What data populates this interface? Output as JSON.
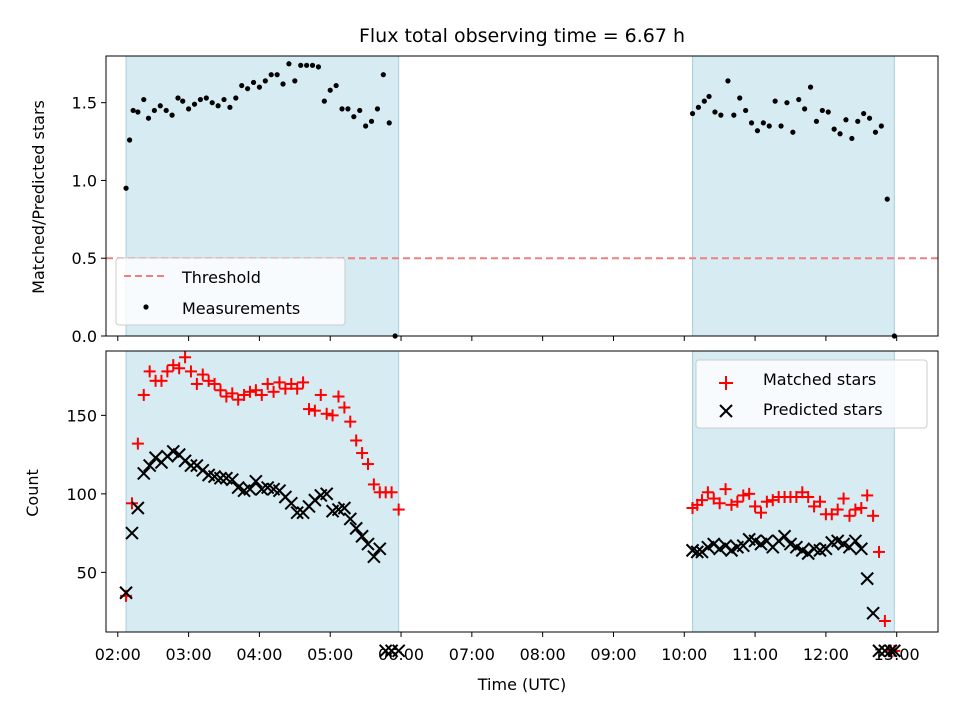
{
  "chart_data": [
    {
      "type": "scatter",
      "title": "Flux total observing time = 6.67 h",
      "xlabel": "",
      "ylabel": "Matched/Predicted stars",
      "xlim": [
        "01:50",
        "13:35"
      ],
      "ylim": [
        0.0,
        1.8
      ],
      "yticks": [
        "0.0",
        "0.5",
        "1.0",
        "1.5"
      ],
      "grid": false,
      "legend_position": "lower-left",
      "shaded_intervals": [
        [
          "02:07",
          "05:58"
        ],
        [
          "10:07",
          "12:58"
        ]
      ],
      "threshold": {
        "name": "Threshold",
        "value": 0.5,
        "color": "#f08080"
      },
      "series": [
        {
          "name": "Measurements",
          "color": "#000000",
          "x": [
            "02:07",
            "02:10",
            "02:13",
            "02:17",
            "02:22",
            "02:26",
            "02:31",
            "02:36",
            "02:41",
            "02:46",
            "02:51",
            "02:55",
            "03:00",
            "03:05",
            "03:10",
            "03:15",
            "03:20",
            "03:25",
            "03:30",
            "03:35",
            "03:40",
            "03:45",
            "03:50",
            "03:55",
            "04:00",
            "04:05",
            "04:10",
            "04:15",
            "04:20",
            "04:25",
            "04:30",
            "04:35",
            "04:40",
            "04:45",
            "04:50",
            "04:55",
            "05:00",
            "05:05",
            "05:10",
            "05:15",
            "05:20",
            "05:25",
            "05:30",
            "05:35",
            "05:40",
            "05:45",
            "05:50",
            "05:55",
            "10:07",
            "10:12",
            "10:17",
            "10:21",
            "10:26",
            "10:31",
            "10:37",
            "10:42",
            "10:47",
            "10:52",
            "10:57",
            "11:02",
            "11:07",
            "11:12",
            "11:17",
            "11:22",
            "11:27",
            "11:32",
            "11:37",
            "11:42",
            "11:47",
            "11:52",
            "11:57",
            "12:02",
            "12:07",
            "12:12",
            "12:17",
            "12:22",
            "12:27",
            "12:32",
            "12:37",
            "12:42",
            "12:47",
            "12:52",
            "12:58"
          ],
          "y": [
            0.95,
            1.26,
            1.45,
            1.44,
            1.52,
            1.4,
            1.45,
            1.48,
            1.45,
            1.42,
            1.53,
            1.51,
            1.46,
            1.49,
            1.52,
            1.53,
            1.5,
            1.48,
            1.52,
            1.47,
            1.53,
            1.61,
            1.59,
            1.63,
            1.6,
            1.64,
            1.68,
            1.68,
            1.62,
            1.75,
            1.64,
            1.74,
            1.74,
            1.74,
            1.73,
            1.51,
            1.58,
            1.61,
            1.46,
            1.46,
            1.41,
            1.45,
            1.35,
            1.38,
            1.46,
            1.68,
            1.37,
            0.0,
            1.43,
            1.47,
            1.51,
            1.54,
            1.44,
            1.42,
            1.64,
            1.42,
            1.53,
            1.45,
            1.37,
            1.32,
            1.37,
            1.35,
            1.51,
            1.35,
            1.5,
            1.31,
            1.52,
            1.46,
            1.6,
            1.38,
            1.45,
            1.44,
            1.33,
            1.3,
            1.39,
            1.27,
            1.38,
            1.43,
            1.4,
            1.31,
            1.35,
            0.88,
            0.0
          ]
        }
      ]
    },
    {
      "type": "scatter",
      "title": "",
      "xlabel": "Time (UTC)",
      "ylabel": "Count",
      "xlim": [
        "01:50",
        "13:35"
      ],
      "ylim": [
        12,
        191
      ],
      "yticks": [
        "50",
        "100",
        "150"
      ],
      "xticks": [
        "02:00",
        "03:00",
        "04:00",
        "05:00",
        "06:00",
        "07:00",
        "08:00",
        "09:00",
        "10:00",
        "11:00",
        "12:00",
        "13:00"
      ],
      "grid": false,
      "legend_position": "top-right",
      "shaded_intervals": [
        [
          "02:07",
          "05:58"
        ],
        [
          "10:07",
          "12:58"
        ]
      ],
      "series": [
        {
          "name": "Matched stars",
          "color": "#ff0000",
          "marker": "+",
          "x": [
            "02:07",
            "02:12",
            "02:17",
            "02:22",
            "02:27",
            "02:32",
            "02:37",
            "02:42",
            "02:47",
            "02:52",
            "02:57",
            "03:02",
            "03:07",
            "03:12",
            "03:17",
            "03:22",
            "03:27",
            "03:32",
            "03:37",
            "03:42",
            "03:47",
            "03:52",
            "03:57",
            "04:02",
            "04:07",
            "04:12",
            "04:17",
            "04:22",
            "04:27",
            "04:32",
            "04:37",
            "04:42",
            "04:47",
            "04:52",
            "04:57",
            "05:02",
            "05:07",
            "05:12",
            "05:17",
            "05:22",
            "05:27",
            "05:32",
            "05:37",
            "05:42",
            "05:47",
            "05:52",
            "05:58",
            "10:07",
            "10:11",
            "10:15",
            "10:20",
            "10:25",
            "10:30",
            "10:35",
            "10:40",
            "10:45",
            "10:50",
            "10:55",
            "11:00",
            "11:05",
            "11:10",
            "11:15",
            "11:20",
            "11:25",
            "11:30",
            "11:35",
            "11:40",
            "11:45",
            "11:50",
            "11:55",
            "12:00",
            "12:05",
            "12:10",
            "12:15",
            "12:20",
            "12:25",
            "12:30",
            "12:35",
            "12:40",
            "12:45",
            "12:50",
            "12:55",
            "12:58"
          ],
          "y": [
            35,
            94,
            132,
            163,
            178,
            172,
            172,
            178,
            182,
            180,
            187,
            178,
            170,
            176,
            172,
            170,
            166,
            162,
            164,
            160,
            163,
            165,
            166,
            163,
            170,
            165,
            171,
            167,
            170,
            167,
            171,
            154,
            153,
            163,
            151,
            150,
            162,
            155,
            146,
            134,
            126,
            119,
            106,
            101,
            101,
            101,
            90,
            91,
            93,
            96,
            101,
            97,
            94,
            103,
            93,
            95,
            99,
            100,
            92,
            88,
            95,
            96,
            98,
            98,
            98,
            98,
            101,
            98,
            92,
            95,
            87,
            87,
            90,
            97,
            86,
            90,
            91,
            99,
            86,
            63,
            19,
            0,
            0
          ]
        },
        {
          "name": "Predicted stars",
          "color": "#000000",
          "marker": "x",
          "x": [
            "02:07",
            "02:12",
            "02:17",
            "02:22",
            "02:27",
            "02:32",
            "02:37",
            "02:42",
            "02:47",
            "02:52",
            "02:57",
            "03:02",
            "03:07",
            "03:12",
            "03:17",
            "03:22",
            "03:27",
            "03:32",
            "03:37",
            "03:42",
            "03:47",
            "03:52",
            "03:57",
            "04:02",
            "04:07",
            "04:12",
            "04:17",
            "04:22",
            "04:27",
            "04:32",
            "04:37",
            "04:42",
            "04:47",
            "04:52",
            "04:57",
            "05:02",
            "05:07",
            "05:12",
            "05:17",
            "05:22",
            "05:27",
            "05:32",
            "05:37",
            "05:42",
            "05:47",
            "05:52",
            "05:58",
            "10:07",
            "10:11",
            "10:15",
            "10:20",
            "10:25",
            "10:30",
            "10:35",
            "10:40",
            "10:45",
            "10:50",
            "10:55",
            "11:00",
            "11:05",
            "11:10",
            "11:15",
            "11:20",
            "11:25",
            "11:30",
            "11:35",
            "11:40",
            "11:45",
            "11:50",
            "11:55",
            "12:00",
            "12:05",
            "12:10",
            "12:15",
            "12:20",
            "12:25",
            "12:30",
            "12:35",
            "12:40",
            "12:45",
            "12:50",
            "12:55",
            "12:58"
          ],
          "y": [
            37,
            75,
            91,
            113,
            118,
            123,
            120,
            124,
            127,
            125,
            121,
            118,
            118,
            115,
            112,
            111,
            110,
            110,
            109,
            104,
            102,
            103,
            108,
            103,
            104,
            103,
            102,
            98,
            94,
            88,
            88,
            92,
            96,
            99,
            100,
            89,
            90,
            91,
            84,
            78,
            73,
            68,
            60,
            65,
            0,
            0,
            0,
            64,
            63,
            63,
            66,
            68,
            65,
            67,
            64,
            66,
            67,
            71,
            70,
            68,
            70,
            66,
            70,
            73,
            68,
            66,
            64,
            62,
            65,
            64,
            65,
            69,
            70,
            68,
            66,
            70,
            65,
            46,
            24,
            0,
            0,
            0,
            0
          ]
        }
      ]
    }
  ]
}
